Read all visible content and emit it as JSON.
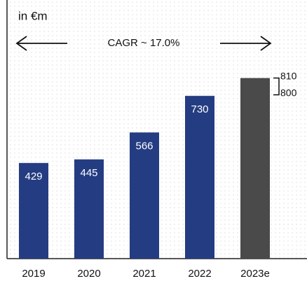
{
  "chart_data": {
    "type": "bar",
    "title": "in €m",
    "annotation": "CAGR ~ 17.0%",
    "categories": [
      "2019",
      "2020",
      "2021",
      "2022",
      "2023e"
    ],
    "values": [
      429,
      445,
      566,
      730,
      null
    ],
    "color": "#243c82",
    "estimate_color": "#4a4a4a",
    "estimate_range": [
      800,
      810
    ],
    "ylim": [
      0,
      1160
    ]
  }
}
